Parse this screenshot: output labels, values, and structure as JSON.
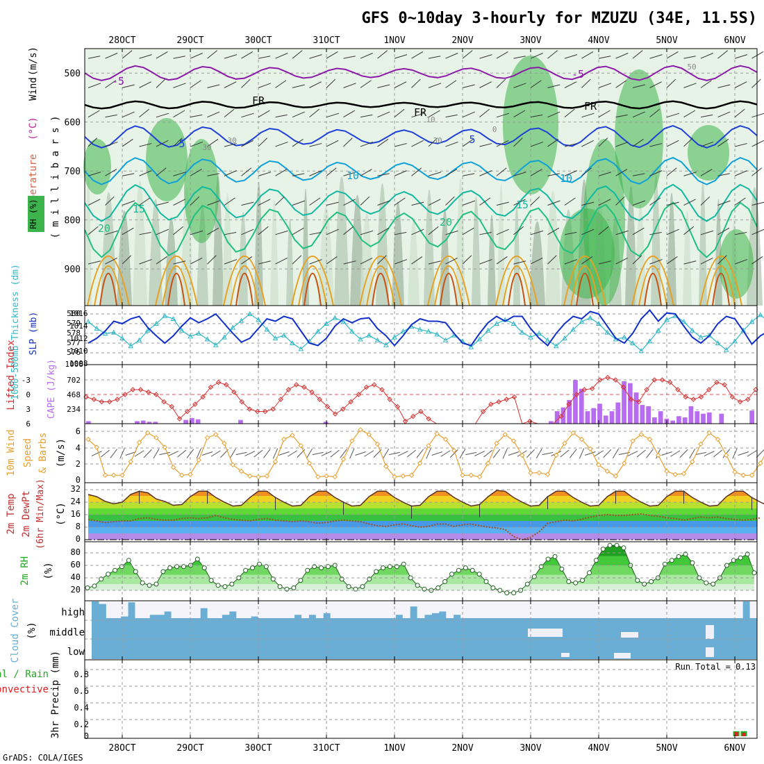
{
  "title": "GFS 0~10day 3-hourly for MZUZU (34E, 11.5S)",
  "footer": "GrADS: COLA/IGES",
  "run_total": "Run Total = 0.13",
  "dates": [
    "28OCT",
    "29OCT",
    "30OCT",
    "31OCT",
    "1NOV",
    "2NOV",
    "3NOV",
    "4NOV",
    "5NOV",
    "6NOV"
  ],
  "colors": {
    "rh_green": "#3cb44b",
    "temp_purple": "#8b1aa8",
    "temp_blue": "#1e40d8",
    "temp_cyan": "#10a0d8",
    "temp_teal": "#12b8a0",
    "temp_green": "#20c080",
    "temp_orange": "#e8a020",
    "slp": "#1030c8",
    "thick": "#30b8c8",
    "li": "#d83030",
    "cape": "#b86cf0",
    "wind": "#e8a030",
    "cloud": "#6aaed6",
    "rain": "#22aa22",
    "conv": "#e02020"
  },
  "chart_data": [
    {
      "type": "heatmap",
      "id": "upper",
      "title": "Temperature (°C) Wind (m/s) RH (%)",
      "ylabel": "( m i l l i b a r s )",
      "ylabel_parts": [
        "Temperature",
        "(°C)",
        "Wind",
        "(m/s)"
      ],
      "rh_label": "RH (%)",
      "ylim": [
        975,
        450
      ],
      "yticks": [
        500,
        600,
        700,
        800,
        900
      ],
      "isotherm_labels": [
        "-5",
        "FR",
        "5",
        "10",
        "15",
        "20",
        "-5",
        "FR",
        "FR",
        "5",
        "10",
        "15",
        "20",
        "30",
        "30",
        "30",
        "50",
        "10",
        "0"
      ],
      "isotherms": [
        {
          "label": "-5",
          "base_mb": 500,
          "amp": 12
        },
        {
          "label": "FR",
          "base_mb": 565,
          "amp": 6
        },
        {
          "label": "5",
          "base_mb": 630,
          "amp": 18
        },
        {
          "label": "10",
          "base_mb": 700,
          "amp": 22
        },
        {
          "label": "15",
          "base_mb": 765,
          "amp": 30
        },
        {
          "label": "20",
          "base_mb": 820,
          "amp": 45
        }
      ]
    },
    {
      "type": "line",
      "id": "slp",
      "series_names": [
        "1000-500mb Thickness (dm)",
        "SLP (mb)"
      ],
      "left_ticks": [
        "580",
        "579",
        "578",
        "577",
        "576",
        "1008"
      ],
      "right_ticks": [
        "1016",
        "1014",
        "1012",
        "1010",
        "1008"
      ],
      "thickness_dm": [
        579.2,
        578.5,
        578.0,
        578.1,
        577.5,
        576.7,
        577.3,
        578.3,
        579.0,
        579.8,
        579.5,
        578.3,
        577.7,
        578.0,
        577.4,
        576.8,
        577.6,
        578.6,
        579.3,
        580.0,
        579.4,
        578.4,
        577.5,
        577.8,
        577.0,
        576.4,
        577.2,
        578.2,
        579.0,
        579.6,
        579.2,
        578.2,
        577.4,
        577.8,
        577.3,
        576.8,
        577.6,
        578.2,
        578.7,
        578.4,
        578.2,
        577.9,
        577.3,
        577.8,
        577.2,
        576.6,
        577.4,
        578.3,
        579.0,
        579.4,
        579.0,
        578.1,
        577.6,
        578.0,
        577.3,
        576.7,
        577.5,
        578.4,
        579.2,
        579.6,
        579.0,
        578.1,
        577.4,
        577.6,
        577.0,
        576.2,
        577.2,
        578.3,
        579.4,
        579.8,
        579.2,
        578.3,
        577.6,
        577.8,
        577.0,
        576.3,
        577.2,
        578.3,
        579.2,
        579.9,
        579.2,
        577.5
      ],
      "slp_mb": [
        1010.0,
        1011.0,
        1012.5,
        1014.5,
        1014.0,
        1015.0,
        1015.5,
        1013.2,
        1011.5,
        1010.0,
        1011.5,
        1013.5,
        1015.2,
        1014.2,
        1015.0,
        1016.0,
        1014.0,
        1012.0,
        1010.2,
        1011.0,
        1013.0,
        1015.0,
        1014.5,
        1015.5,
        1015.0,
        1012.5,
        1010.0,
        1009.5,
        1011.0,
        1013.5,
        1015.0,
        1014.2,
        1015.0,
        1015.2,
        1013.0,
        1011.5,
        1009.5,
        1011.5,
        1013.8,
        1015.0,
        1014.5,
        1014.5,
        1014.2,
        1012.0,
        1010.0,
        1009.5,
        1012.0,
        1014.2,
        1015.5,
        1014.5,
        1015.5,
        1015.5,
        1013.0,
        1011.0,
        1009.5,
        1012.0,
        1014.0,
        1015.5,
        1015.0,
        1016.5,
        1016.0,
        1013.5,
        1011.0,
        1010.0,
        1012.0,
        1015.0,
        1016.8,
        1014.5,
        1016.2,
        1016.0,
        1013.5,
        1011.2,
        1010.0,
        1011.5,
        1014.0,
        1015.5,
        1015.0,
        1012.5,
        1009.8,
        1011.5,
        1012.5,
        1012.8
      ]
    },
    {
      "type": "bar",
      "id": "cape",
      "series_names": [
        "Lifted Index",
        "CAPE (J/kg)"
      ],
      "left_ticks": [
        "-3",
        "0",
        "3",
        "6"
      ],
      "right_ticks": [
        "702",
        "468",
        "234"
      ],
      "lifted_index": [
        0.5,
        1.0,
        1.5,
        1.5,
        1.0,
        0.0,
        -1.0,
        -1.0,
        -0.5,
        0.0,
        1.5,
        2.5,
        5.0,
        3.5,
        2.0,
        0.5,
        -1.5,
        -2.5,
        -2.0,
        -0.5,
        1.5,
        3.0,
        3.5,
        3.5,
        3.0,
        1.0,
        -1.0,
        -2.0,
        -1.5,
        -0.5,
        1.0,
        2.5,
        4.0,
        3.0,
        1.5,
        0.0,
        -1.5,
        -2.0,
        -1.0,
        1.0,
        2.5,
        5.5,
        4.5,
        3.5,
        5.0,
        6.0,
        6.5,
        7.0,
        6.0,
        6.2,
        6.0,
        3.5,
        2.0,
        1.5,
        1.0,
        0.5,
        6.5,
        5.5,
        6.5,
        7.0,
        6.8,
        4.5,
        2.0,
        0.0,
        -1.0,
        -1.2,
        -3.0,
        -3.5,
        -3.0,
        -1.5,
        1.0,
        1.5,
        -1.0,
        -3.0,
        -3.0,
        -2.5,
        -1.0,
        0.5,
        1.0,
        0.5,
        -1.0,
        -2.5,
        -2.0,
        0.5,
        1.5,
        1.0,
        -1.0
      ],
      "cape_jkg": [
        40,
        0,
        0,
        0,
        0,
        0,
        0,
        0,
        40,
        50,
        30,
        30,
        0,
        0,
        0,
        0,
        60,
        90,
        70,
        0,
        0,
        0,
        0,
        0,
        0,
        60,
        0,
        0,
        0,
        0,
        0,
        0,
        0,
        0,
        0,
        0,
        0,
        0,
        0,
        30,
        0,
        0,
        0,
        0,
        0,
        0,
        0,
        0,
        0,
        0,
        0,
        0,
        0,
        0,
        0,
        0,
        0,
        0,
        0,
        0,
        0,
        0,
        0,
        0,
        0,
        0,
        0,
        0,
        0,
        0,
        0,
        0,
        0,
        0,
        0,
        0,
        40,
        200,
        260,
        380,
        700,
        560,
        200,
        250,
        320,
        130,
        200,
        340,
        680,
        650,
        500,
        300,
        280,
        100,
        200,
        80,
        50,
        120,
        100,
        280,
        200,
        160,
        180,
        0,
        160,
        0,
        0,
        0,
        0,
        210
      ]
    },
    {
      "type": "line",
      "id": "wind",
      "ylabel": "(m/s)",
      "series_names": [
        "10m Wind",
        "Speed",
        "& Barbs"
      ],
      "left_ticks": [
        "6",
        "4",
        "2",
        "0"
      ],
      "speed_ms": [
        5.0,
        4.0,
        0.5,
        0.5,
        0.5,
        2.2,
        4.6,
        5.8,
        5.2,
        4.0,
        1.5,
        0.5,
        0.6,
        2.4,
        5.2,
        5.6,
        4.5,
        1.8,
        1.0,
        0.4,
        0.3,
        0.4,
        2.2,
        5.0,
        5.5,
        4.2,
        2.0,
        0.3,
        0.4,
        0.3,
        2.5,
        4.8,
        6.2,
        5.6,
        4.4,
        1.6,
        0.3,
        0.4,
        0.5,
        2.0,
        4.2,
        5.7,
        5.0,
        3.6,
        0.5,
        0.5,
        0.3,
        2.0,
        4.5,
        5.6,
        4.8,
        3.0,
        0.8,
        0.8,
        0.6,
        3.0,
        4.5,
        5.8,
        5.0,
        3.8,
        1.8,
        1.0,
        0.4,
        2.0,
        4.8,
        5.6,
        5.0,
        3.0,
        1.0,
        0.6,
        0.7,
        2.2,
        4.4,
        5.8,
        5.0,
        3.0,
        0.9,
        0.5,
        0.5,
        2.0,
        3.9
      ]
    },
    {
      "type": "area",
      "id": "temp",
      "ylabel": "(°C)",
      "series_names": [
        "2m Temp",
        "2m DewPt",
        "(6hr Min/Max)"
      ],
      "left_ticks": [
        "32",
        "24",
        "16",
        "8",
        "0"
      ],
      "temp_c": [
        29.0,
        27.5,
        24.5,
        23.0,
        24.0,
        29.0,
        31.0,
        30.0,
        26.0,
        24.5,
        22.0,
        22.5,
        27.5,
        31.0,
        31.0,
        27.0,
        24.0,
        21.5,
        22.0,
        27.0,
        31.0,
        31.0,
        27.0,
        24.0,
        21.5,
        22.0,
        27.5,
        31.0,
        31.0,
        27.0,
        24.0,
        21.5,
        22.0,
        27.5,
        31.0,
        31.0,
        27.0,
        24.0,
        21.5,
        22.0,
        27.5,
        31.0,
        31.0,
        27.0,
        24.0,
        21.5,
        22.5,
        27.5,
        31.5,
        31.0,
        27.0,
        24.0,
        21.5,
        22.0,
        27.5,
        31.0,
        31.0,
        27.0,
        24.0,
        21.5,
        22.0,
        27.5,
        31.0,
        31.0,
        27.0,
        24.0,
        21.5,
        22.0,
        27.5,
        31.0,
        31.0,
        27.0,
        24.0,
        21.5,
        22.0,
        27.5,
        31.0,
        31.0,
        27.0,
        24.0,
        21.5
      ],
      "dewpt_c": [
        13.0,
        12.0,
        11.0,
        11.5,
        12.0,
        12.0,
        13.5,
        14.0,
        13.0,
        12.5,
        12.5,
        13.5,
        14.0,
        13.5,
        14.0,
        15.5,
        14.0,
        13.0,
        12.5,
        12.0,
        13.0,
        13.5,
        12.5,
        12.0,
        11.5,
        12.0,
        11.5,
        10.5,
        11.0,
        12.0,
        12.5,
        12.0,
        11.5,
        10.0,
        9.0,
        8.5,
        9.5,
        10.0,
        9.0,
        8.0,
        8.5,
        10.0,
        10.0,
        8.5,
        9.5,
        10.0,
        9.0,
        8.0,
        7.5,
        6.5,
        2.0,
        0.0,
        1.5,
        5.0,
        10.5,
        11.5,
        12.5,
        12.0,
        13.0,
        14.5,
        15.5,
        16.0,
        15.5,
        15.5,
        16.0,
        16.5,
        15.5,
        15.0,
        14.0,
        13.5,
        12.5,
        13.5,
        14.5,
        14.0,
        14.5,
        13.5,
        13.0,
        12.5,
        13.0,
        14.0
      ]
    },
    {
      "type": "area",
      "id": "rh",
      "ylabel": "(%)",
      "series_names": [
        "2m RH"
      ],
      "left_ticks": [
        "80",
        "60",
        "40",
        "20"
      ],
      "rh_pct": [
        24,
        27,
        38,
        46,
        52,
        58,
        68,
        50,
        32,
        28,
        30,
        50,
        56,
        58,
        58,
        60,
        70,
        56,
        36,
        28,
        26,
        30,
        40,
        52,
        56,
        62,
        58,
        38,
        26,
        22,
        24,
        36,
        52,
        58,
        56,
        58,
        60,
        38,
        26,
        22,
        26,
        38,
        50,
        56,
        58,
        58,
        62,
        40,
        28,
        22,
        20,
        24,
        34,
        46,
        52,
        56,
        52,
        46,
        34,
        24,
        20,
        16,
        16,
        20,
        30,
        42,
        58,
        70,
        74,
        54,
        34,
        32,
        36,
        48,
        68,
        86,
        92,
        92,
        88,
        60,
        36,
        30,
        34,
        40,
        62,
        68,
        74,
        78,
        64,
        40,
        32,
        30,
        40,
        60,
        68,
        72,
        78,
        48
      ]
    },
    {
      "type": "table",
      "id": "cloud",
      "ylabel": "(%)",
      "series_names": [
        "Cloud Cover"
      ],
      "rows": [
        "high",
        "middle",
        "low"
      ],
      "high_pct": [
        100,
        85,
        0,
        0,
        10,
        95,
        0,
        0,
        20,
        20,
        40,
        0,
        0,
        0,
        0,
        60,
        0,
        0,
        20,
        40,
        0,
        0,
        10,
        0,
        0,
        0,
        0,
        0,
        20,
        0,
        20,
        0,
        30,
        0,
        0,
        0,
        0,
        0,
        0,
        0,
        0,
        0,
        20,
        0,
        70,
        0,
        20,
        30,
        40,
        0,
        20,
        0,
        0,
        0,
        0,
        0,
        0,
        0,
        0,
        0,
        0,
        0,
        0,
        0,
        0,
        0,
        0,
        0,
        0,
        0,
        0,
        0,
        0,
        0,
        0,
        0,
        0,
        0,
        0,
        0,
        0,
        0,
        0,
        0,
        0,
        0,
        0,
        0,
        0,
        0,
        100,
        0
      ],
      "mid_low_note": "mostly full"
    },
    {
      "type": "bar",
      "id": "precip",
      "ylabel": "3hr Precip (mm)",
      "series_names": [
        "Total / Rain",
        "Convective"
      ],
      "left_ticks": [
        "0.8",
        "0.6",
        "0.4",
        "0.2",
        "0"
      ],
      "ylim": [
        0,
        0.9
      ],
      "bars": [
        {
          "index": 55,
          "total": 0.06,
          "convective": 0.05
        },
        {
          "index": 56,
          "total": 0.06,
          "convective": 0.04
        }
      ]
    }
  ]
}
